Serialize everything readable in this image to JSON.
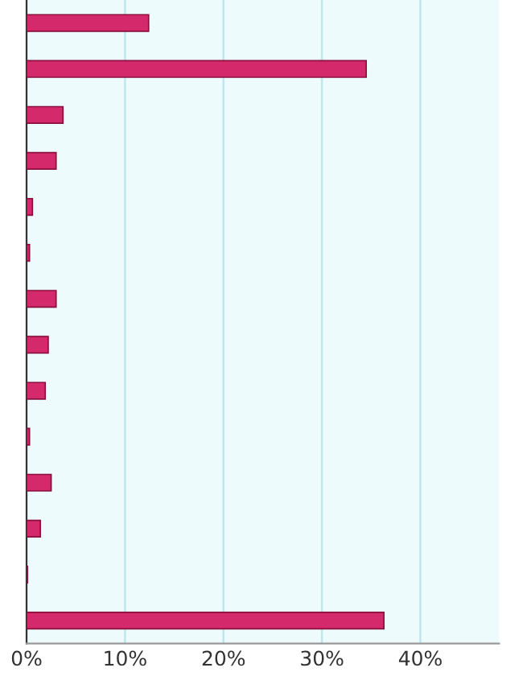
{
  "chart_data": {
    "type": "bar",
    "orientation": "horizontal",
    "categories": [
      null,
      null,
      null,
      null,
      null,
      null,
      null,
      null,
      null,
      null,
      null,
      null,
      null,
      null
    ],
    "values": [
      12.4,
      34.5,
      3.7,
      3.0,
      0.6,
      0.3,
      3.0,
      2.2,
      1.9,
      0.3,
      2.5,
      1.4,
      0.1,
      36.3
    ],
    "color": "#d42a6c",
    "xlim": [
      0,
      48
    ],
    "xticks": [
      {
        "value": 0,
        "label": "0%"
      },
      {
        "value": 10,
        "label": "10%"
      },
      {
        "value": 20,
        "label": "20%"
      },
      {
        "value": 30,
        "label": "30%"
      },
      {
        "value": 40,
        "label": "40%"
      }
    ],
    "grid": "x",
    "tick_labels": "x"
  }
}
